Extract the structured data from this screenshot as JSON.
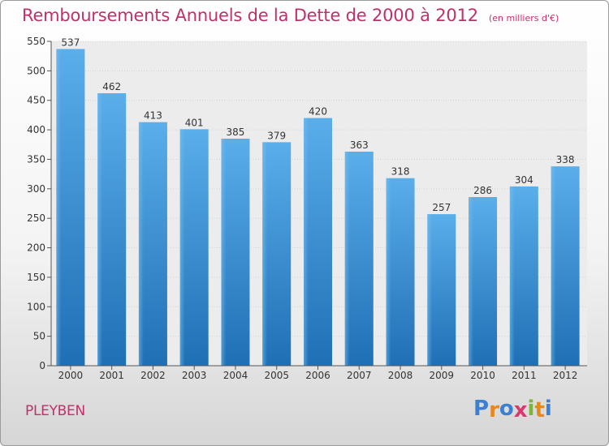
{
  "chart_data": {
    "type": "bar",
    "title": "Remboursements Annuels de la Dette de 2000 à 2012",
    "subtitle": "(en milliers d'€)",
    "categories": [
      "2000",
      "2001",
      "2002",
      "2003",
      "2004",
      "2005",
      "2006",
      "2007",
      "2008",
      "2009",
      "2010",
      "2011",
      "2012"
    ],
    "values": [
      537,
      462,
      413,
      401,
      385,
      379,
      420,
      363,
      318,
      257,
      286,
      304,
      338
    ],
    "ylim": [
      0,
      550
    ],
    "yticks": [
      0,
      50,
      100,
      150,
      200,
      250,
      300,
      350,
      400,
      450,
      500,
      550
    ],
    "grid": true,
    "bar_color": "#4a9ee0"
  },
  "footer": {
    "commune": "PLEYBEN",
    "logo": {
      "letters": [
        "P",
        "r",
        "o",
        "x",
        "i",
        "t",
        "i"
      ],
      "colors": [
        "#3d7fd1",
        "#e8871e",
        "#3d7fd1",
        "#d93a6e",
        "#7fb43a",
        "#e8871e",
        "#3d7fd1"
      ]
    }
  }
}
